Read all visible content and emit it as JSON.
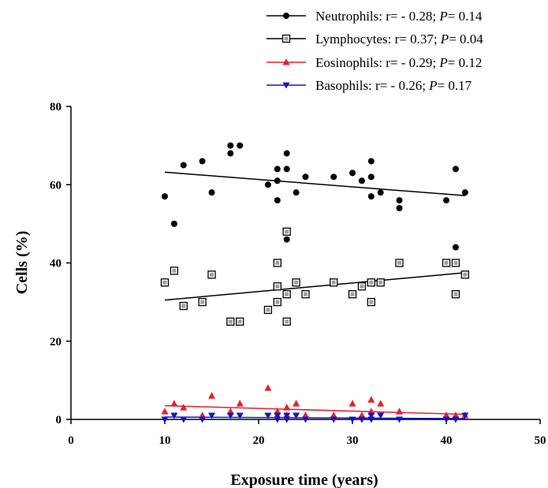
{
  "chart_data": {
    "type": "scatter",
    "title": "",
    "xlabel": "Exposure time (years)",
    "ylabel": "Cells (%)",
    "xlim": [
      0,
      50
    ],
    "ylim": [
      0,
      80
    ],
    "x_ticks": [
      "0",
      "10",
      "20",
      "30",
      "40",
      "50"
    ],
    "y_ticks": [
      "0",
      "20",
      "40",
      "60",
      "80"
    ],
    "grid": false,
    "legend_position": "top-right",
    "series": [
      {
        "name": "Neutrophils",
        "legend_label": "Neutrophils: r= - 0.28;",
        "p_label": "P",
        "p_value": "= 0.14",
        "marker": "circle-filled",
        "color": "#000000",
        "fit_color": "#000000",
        "fit": [
          [
            10,
            63.2
          ],
          [
            42,
            57.2
          ]
        ],
        "points": [
          [
            10,
            57
          ],
          [
            11,
            50
          ],
          [
            12,
            65
          ],
          [
            14,
            66
          ],
          [
            15,
            58
          ],
          [
            17,
            70
          ],
          [
            17,
            68
          ],
          [
            18,
            70
          ],
          [
            21,
            60
          ],
          [
            22,
            64
          ],
          [
            22,
            61
          ],
          [
            22,
            56
          ],
          [
            23,
            68
          ],
          [
            23,
            64
          ],
          [
            23,
            46
          ],
          [
            24,
            58
          ],
          [
            25,
            62
          ],
          [
            28,
            62
          ],
          [
            30,
            63
          ],
          [
            31,
            61
          ],
          [
            32,
            66
          ],
          [
            32,
            62
          ],
          [
            32,
            57
          ],
          [
            33,
            58
          ],
          [
            35,
            56
          ],
          [
            35,
            54
          ],
          [
            40,
            56
          ],
          [
            41,
            64
          ],
          [
            41,
            44
          ],
          [
            42,
            58
          ]
        ]
      },
      {
        "name": "Lymphocytes",
        "legend_label": "Lymphocytes: r= 0.37;",
        "p_label": "P",
        "p_value": "= 0.04",
        "marker": "square-open",
        "color": "#000000",
        "fit_color": "#000000",
        "fit": [
          [
            10,
            30.5
          ],
          [
            42,
            37.5
          ]
        ],
        "points": [
          [
            10,
            35
          ],
          [
            11,
            38
          ],
          [
            12,
            29
          ],
          [
            14,
            30
          ],
          [
            15,
            37
          ],
          [
            17,
            25
          ],
          [
            18,
            25
          ],
          [
            21,
            28
          ],
          [
            22,
            40
          ],
          [
            22,
            34
          ],
          [
            22,
            30
          ],
          [
            23,
            48
          ],
          [
            23,
            32
          ],
          [
            23,
            25
          ],
          [
            24,
            35
          ],
          [
            25,
            32
          ],
          [
            28,
            35
          ],
          [
            30,
            32
          ],
          [
            31,
            34
          ],
          [
            32,
            35
          ],
          [
            32,
            30
          ],
          [
            33,
            35
          ],
          [
            35,
            40
          ],
          [
            40,
            40
          ],
          [
            41,
            40
          ],
          [
            41,
            32
          ],
          [
            42,
            37
          ]
        ]
      },
      {
        "name": "Eosinophils",
        "legend_label": "Eosinophils: r= - 0.29;",
        "p_label": "P",
        "p_value": "= 0.12",
        "marker": "triangle-up",
        "color": "#e8202a",
        "fit_color": "#e8202a",
        "fit": [
          [
            10,
            3.5
          ],
          [
            42,
            1.3
          ]
        ],
        "points": [
          [
            10,
            2
          ],
          [
            11,
            4
          ],
          [
            12,
            3
          ],
          [
            14,
            1
          ],
          [
            15,
            6
          ],
          [
            17,
            2
          ],
          [
            18,
            4
          ],
          [
            21,
            8
          ],
          [
            22,
            2
          ],
          [
            22,
            1
          ],
          [
            23,
            3
          ],
          [
            23,
            1
          ],
          [
            24,
            4
          ],
          [
            25,
            1
          ],
          [
            28,
            1
          ],
          [
            30,
            4
          ],
          [
            31,
            1
          ],
          [
            32,
            5
          ],
          [
            32,
            2
          ],
          [
            33,
            4
          ],
          [
            35,
            2
          ],
          [
            40,
            1
          ],
          [
            41,
            1
          ],
          [
            42,
            1
          ]
        ]
      },
      {
        "name": "Basophils",
        "legend_label": "Basophils: r= - 0.26;",
        "p_label": "P",
        "p_value": "= 0.17",
        "marker": "triangle-down",
        "color": "#1414c8",
        "fit_color": "#1414c8",
        "fit": [
          [
            10,
            0.6
          ],
          [
            42,
            0.2
          ]
        ],
        "points": [
          [
            10,
            0
          ],
          [
            11,
            1
          ],
          [
            12,
            0
          ],
          [
            14,
            0
          ],
          [
            15,
            1
          ],
          [
            17,
            1
          ],
          [
            18,
            1
          ],
          [
            21,
            1
          ],
          [
            22,
            0
          ],
          [
            22,
            1
          ],
          [
            23,
            1
          ],
          [
            23,
            0
          ],
          [
            24,
            1
          ],
          [
            25,
            0
          ],
          [
            28,
            0
          ],
          [
            30,
            0
          ],
          [
            31,
            0
          ],
          [
            32,
            1
          ],
          [
            32,
            0
          ],
          [
            33,
            1
          ],
          [
            35,
            0
          ],
          [
            40,
            0
          ],
          [
            41,
            0
          ],
          [
            42,
            1
          ]
        ]
      }
    ]
  }
}
